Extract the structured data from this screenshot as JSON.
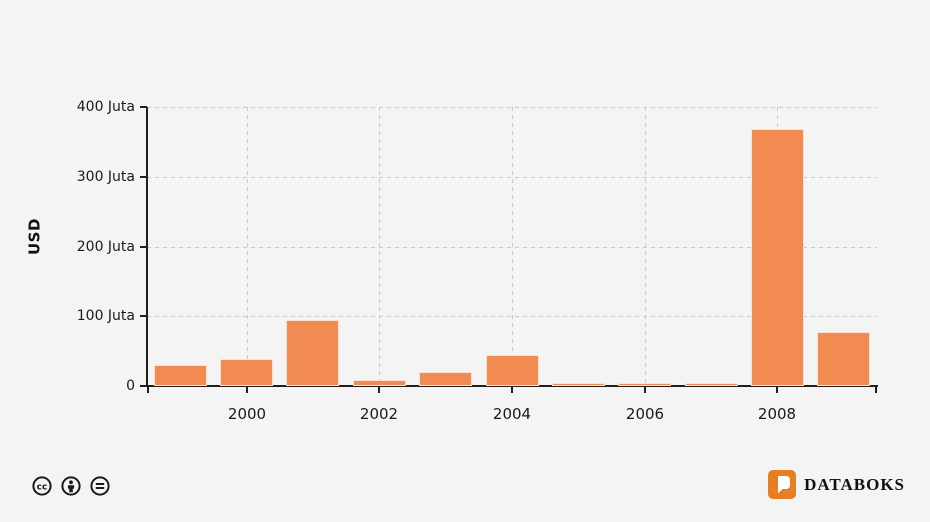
{
  "chart_data": {
    "type": "bar",
    "title": "",
    "ylabel": "USD",
    "unit": "Juta",
    "categories": [
      "1999",
      "2000",
      "2001",
      "2002",
      "2003",
      "2004",
      "2005",
      "2006",
      "2007",
      "2008",
      "2009"
    ],
    "values": [
      30,
      38,
      95,
      8,
      20,
      44,
      4,
      4,
      4,
      368,
      77
    ],
    "ylim": [
      0,
      400
    ],
    "yticks": [
      {
        "value": 0,
        "label": "0"
      },
      {
        "value": 100,
        "label": "100 Juta"
      },
      {
        "value": 200,
        "label": "200 Juta"
      },
      {
        "value": 300,
        "label": "300 Juta"
      },
      {
        "value": 400,
        "label": "400 Juta"
      }
    ],
    "xticks": [
      "2000",
      "2002",
      "2004",
      "2006",
      "2008"
    ],
    "grid": "dashed",
    "legend": "none",
    "bar_color": "#F28B51"
  },
  "footer": {
    "license_icons": [
      "cc-icon",
      "attribution-icon",
      "equals-icon"
    ],
    "brand": "DATABOKS"
  },
  "colors": {
    "background": "#F4F4F4",
    "bar": "#F28B51",
    "axis": "#1F1F1F",
    "grid": "#C9C9C9",
    "text": "#1A1A1A",
    "brand_orange": "#E87E23"
  }
}
